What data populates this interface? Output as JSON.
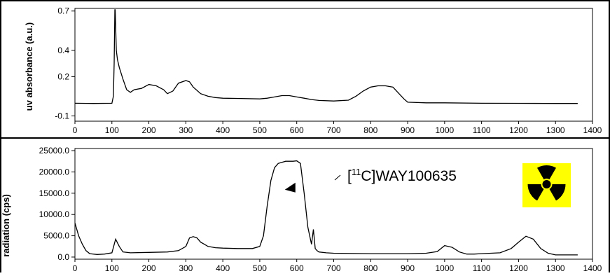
{
  "chart_data": [
    {
      "type": "line",
      "id": "uv",
      "ylabel": "uv absorbance (a.u.)",
      "xlabel": "",
      "xlim": [
        0,
        1400
      ],
      "ylim": [
        -0.14,
        0.72
      ],
      "grid": false,
      "x_ticks": [
        0,
        100,
        200,
        300,
        400,
        500,
        600,
        700,
        800,
        900,
        1000,
        1100,
        1200,
        1300,
        1400
      ],
      "y_ticks": [
        {
          "value": 0.7,
          "label": "0.7"
        },
        {
          "value": 0.4,
          "label": "0.4"
        },
        {
          "value": 0.2,
          "label": "0.2"
        },
        {
          "value": -0.1,
          "label": "-0.1"
        }
      ],
      "series": [
        {
          "color": "#000000",
          "x": [
            0,
            50,
            100,
            104,
            106,
            108,
            109,
            112,
            115,
            120,
            130,
            140,
            150,
            160,
            180,
            200,
            220,
            240,
            250,
            265,
            280,
            300,
            310,
            320,
            340,
            360,
            380,
            400,
            450,
            500,
            520,
            540,
            560,
            580,
            600,
            620,
            640,
            660,
            700,
            740,
            760,
            780,
            800,
            820,
            840,
            860,
            870,
            880,
            890,
            900,
            950,
            1000,
            1100,
            1200,
            1300,
            1360
          ],
          "values": [
            -0.003,
            -0.005,
            -0.003,
            0.05,
            0.3,
            0.71,
            0.71,
            0.4,
            0.33,
            0.27,
            0.18,
            0.1,
            0.08,
            0.1,
            0.11,
            0.14,
            0.13,
            0.1,
            0.07,
            0.09,
            0.15,
            0.17,
            0.16,
            0.12,
            0.07,
            0.05,
            0.04,
            0.035,
            0.033,
            0.03,
            0.035,
            0.045,
            0.055,
            0.055,
            0.045,
            0.035,
            0.025,
            0.018,
            0.014,
            0.02,
            0.05,
            0.09,
            0.12,
            0.13,
            0.13,
            0.12,
            0.09,
            0.06,
            0.03,
            0.005,
            0.0,
            0.0,
            -0.003,
            -0.004,
            -0.005,
            -0.005
          ]
        }
      ]
    },
    {
      "type": "line",
      "id": "radiation",
      "ylabel": "radiation (cps)",
      "xlabel": "",
      "xlim": [
        0,
        1400
      ],
      "ylim": [
        -500,
        25500
      ],
      "grid": false,
      "x_ticks": [
        0,
        100,
        200,
        300,
        400,
        500,
        600,
        700,
        800,
        900,
        1000,
        1100,
        1200,
        1300,
        1400
      ],
      "y_ticks": [
        {
          "value": 25000,
          "label": "25000.0"
        },
        {
          "value": 20000,
          "label": "20000.0"
        },
        {
          "value": 15000,
          "label": "15000.0"
        },
        {
          "value": 10000,
          "label": "10000.0"
        },
        {
          "value": 5000,
          "label": "5000.0"
        },
        {
          "value": 0,
          "label": "0.0"
        }
      ],
      "series": [
        {
          "color": "#000000",
          "x": [
            0,
            10,
            20,
            30,
            40,
            60,
            80,
            100,
            110,
            120,
            130,
            150,
            200,
            250,
            280,
            300,
            310,
            320,
            330,
            340,
            350,
            360,
            380,
            400,
            440,
            480,
            500,
            510,
            520,
            530,
            540,
            550,
            570,
            590,
            600,
            610,
            620,
            630,
            640,
            645,
            650,
            655,
            660,
            680,
            700,
            800,
            900,
            950,
            980,
            1000,
            1020,
            1040,
            1060,
            1080,
            1100,
            1150,
            1180,
            1200,
            1220,
            1240,
            1260,
            1280,
            1300,
            1360
          ],
          "values": [
            8000,
            5000,
            3000,
            1500,
            800,
            600,
            700,
            1000,
            4200,
            2500,
            1200,
            1000,
            1100,
            1200,
            1500,
            2500,
            4500,
            4800,
            4500,
            3500,
            3000,
            2500,
            2200,
            2100,
            2000,
            2000,
            2500,
            5000,
            12000,
            18000,
            21000,
            22000,
            22500,
            22500,
            22600,
            22000,
            15000,
            7000,
            3000,
            6500,
            2000,
            1500,
            1200,
            1000,
            900,
            800,
            800,
            900,
            1300,
            2700,
            2300,
            1200,
            700,
            700,
            800,
            1000,
            2000,
            3500,
            4900,
            4200,
            2000,
            900,
            500,
            500
          ]
        }
      ],
      "annotation": {
        "pre": "[",
        "sup": "11",
        "post": "C]WAY100635",
        "marker_x": 585,
        "marker_value": 16500
      }
    }
  ],
  "colors": {
    "trace": "#000000",
    "badge": "#ffff00",
    "trefoil": "#000000"
  },
  "icon": "radiation-trefoil-icon"
}
